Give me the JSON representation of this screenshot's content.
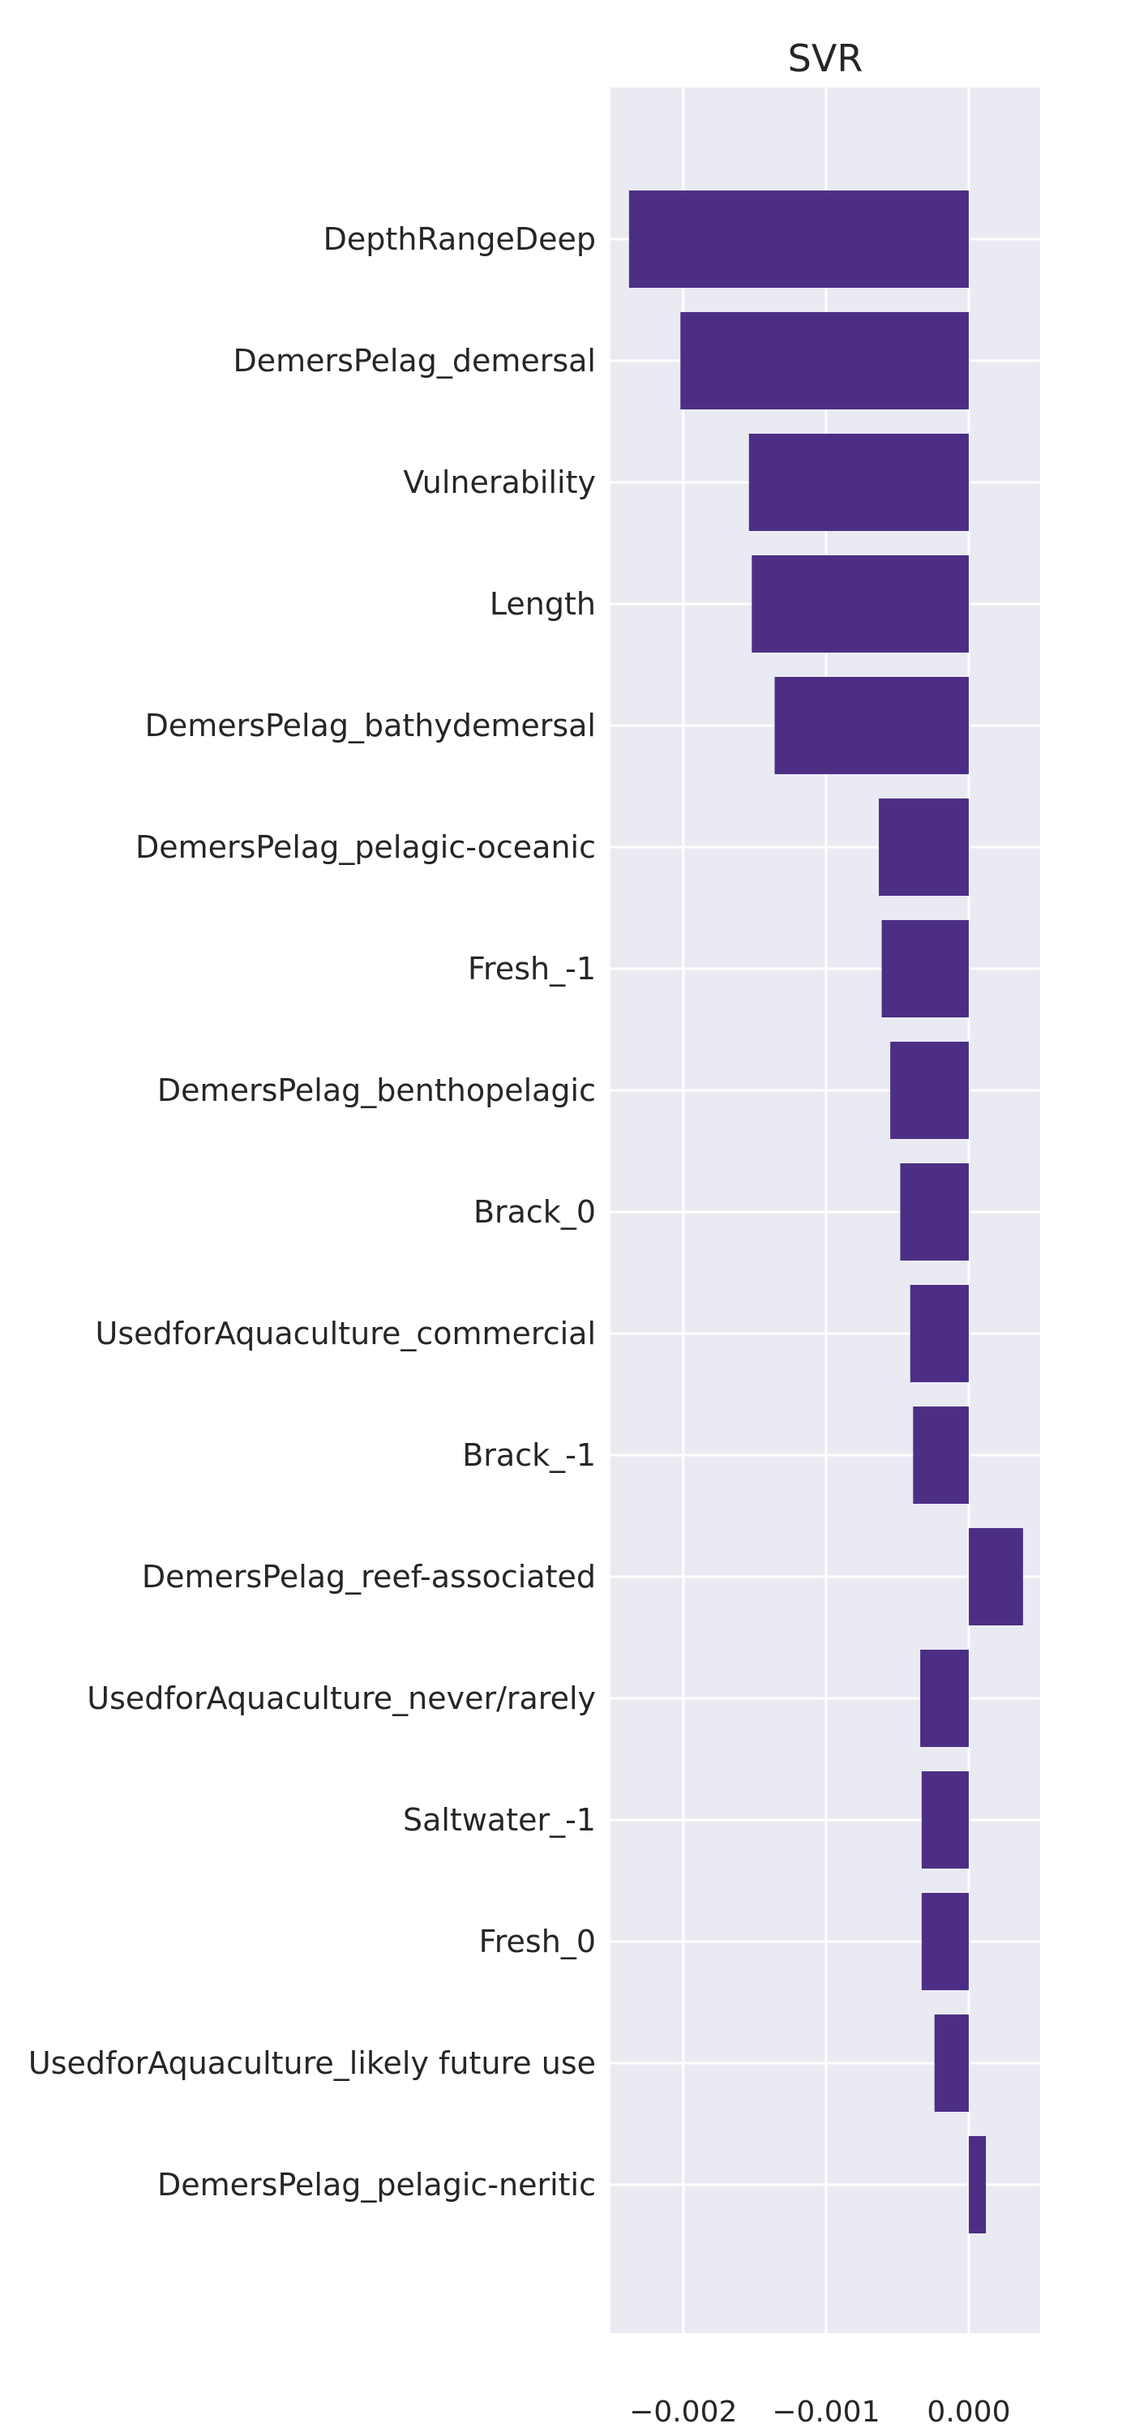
{
  "chart_data": {
    "type": "bar",
    "orientation": "horizontal",
    "title": "SVR",
    "xlabel": "",
    "ylabel": "",
    "xlim": [
      -0.00251,
      0.0005
    ],
    "grid": true,
    "x_ticks": [
      -0.002,
      -0.001,
      0.0
    ],
    "x_tick_labels": [
      "−0.002",
      "−0.001",
      "0.000"
    ],
    "categories": [
      "DepthRangeDeep",
      "DemersPelag_demersal",
      "Vulnerability",
      "Length",
      "DemersPelag_bathydemersal",
      "DemersPelag_pelagic-oceanic",
      "Fresh_-1",
      "DemersPelag_benthopelagic",
      "Brack_0",
      "UsedforAquaculture_commercial",
      "Brack_-1",
      "DemersPelag_reef-associated",
      "UsedforAquaculture_never/rarely",
      "Saltwater_-1",
      "Fresh_0",
      "UsedforAquaculture_likely future use",
      "DemersPelag_pelagic-neritic"
    ],
    "values": [
      -0.00238,
      -0.00202,
      -0.00154,
      -0.00152,
      -0.00136,
      -0.00063,
      -0.00061,
      -0.00055,
      -0.00048,
      -0.00041,
      -0.00039,
      0.00038,
      -0.00034,
      -0.00033,
      -0.00033,
      -0.00024,
      0.00012
    ],
    "colors": {
      "bar": "#4c2f85",
      "background": "#eaeaf2",
      "grid": "#ffffff"
    }
  }
}
